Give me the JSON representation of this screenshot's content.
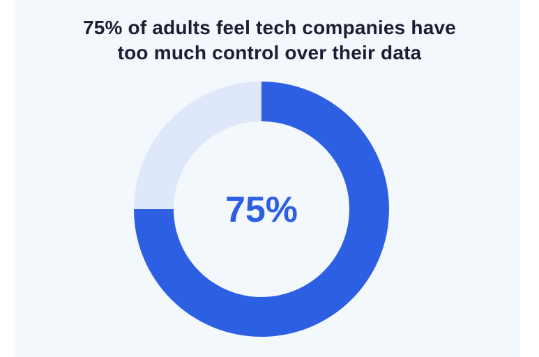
{
  "title_lines": [
    "75% of adults feel tech companies have",
    "too much control over their data"
  ],
  "center_label": "75%",
  "colors": {
    "primary": "#2d5fe3",
    "remainder": "#dfe8fb",
    "center_text": "#2d5fe3",
    "background": "#f3f8fd"
  },
  "chart_data": {
    "type": "pie",
    "title": "75% of adults feel tech companies have too much control over their data",
    "slices": [
      {
        "label": "",
        "value": 75
      },
      {
        "label": "",
        "value": 25
      }
    ],
    "center_text": "75%"
  }
}
